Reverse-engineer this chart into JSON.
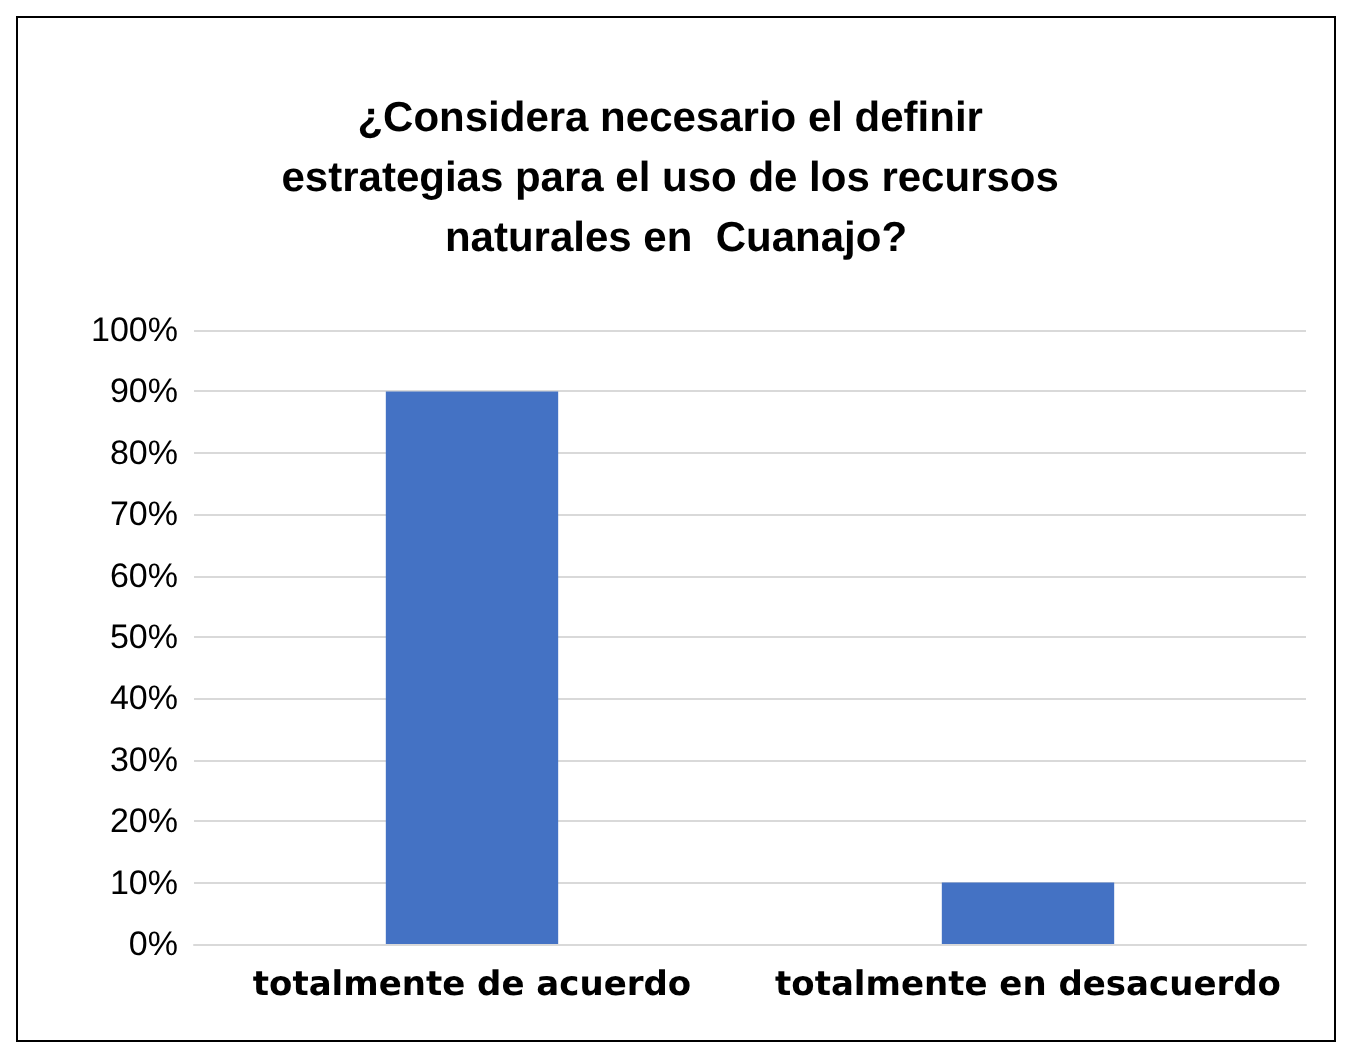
{
  "chart_data": {
    "type": "bar",
    "title": "¿Considera necesario el definir estrategias para el uso de los recursos naturales en  Cuanajo?",
    "categories": [
      "totalmente de acuerdo",
      "totalmente en desacuerdo"
    ],
    "values": [
      90,
      10
    ],
    "color": "#4472c4",
    "ylim": [
      0,
      100
    ],
    "yticks": [
      {
        "value": 0,
        "label": "0%"
      },
      {
        "value": 10,
        "label": "10%"
      },
      {
        "value": 20,
        "label": "20%"
      },
      {
        "value": 30,
        "label": "30%"
      },
      {
        "value": 40,
        "label": "40%"
      },
      {
        "value": 50,
        "label": "50%"
      },
      {
        "value": 60,
        "label": "60%"
      },
      {
        "value": 70,
        "label": "70%"
      },
      {
        "value": 80,
        "label": "80%"
      },
      {
        "value": 90,
        "label": "90%"
      },
      {
        "value": 100,
        "label": "100%"
      }
    ],
    "grid": true
  }
}
